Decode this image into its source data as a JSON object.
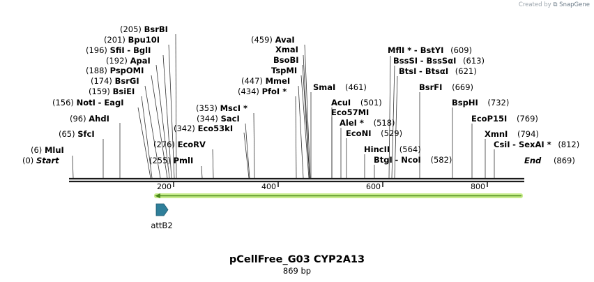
{
  "credit": {
    "prefix": "Created by",
    "brand": "SnapGene"
  },
  "title": "pCellFree_G03 CYP2A13",
  "subtitle": "869 bp",
  "colors": {
    "backbone": "#1a1a1a",
    "feature_arrow": "#4a8a1a",
    "feature_glow": "#c8ec8c",
    "attb2": "#2f7f9a"
  },
  "axis": {
    "ticks": [
      {
        "label": "200"
      },
      {
        "label": "400"
      },
      {
        "label": "600"
      },
      {
        "label": "800"
      }
    ]
  },
  "sites": [
    {
      "pos": "(0)",
      "name": "Start"
    },
    {
      "pos": "(6)",
      "name": "MluI"
    },
    {
      "pos": "(65)",
      "name": "SfcI"
    },
    {
      "pos": "(96)",
      "name": "AhdI"
    },
    {
      "pos": "(156)",
      "name": "NotI",
      "name2": "EagI"
    },
    {
      "pos": "(159)",
      "name": "BsiEI"
    },
    {
      "pos": "(174)",
      "name": "BsrGI"
    },
    {
      "pos": "(188)",
      "name": "PspOMI"
    },
    {
      "pos": "(192)",
      "name": "ApaI"
    },
    {
      "pos": "(196)",
      "name": "SfiI",
      "name2": "BglI"
    },
    {
      "pos": "(201)",
      "name": "Bpu10I"
    },
    {
      "pos": "(205)",
      "name": "BsrBI"
    },
    {
      "pos": "(255)",
      "name": "PmlI"
    },
    {
      "pos": "(276)",
      "name": "EcoRV"
    },
    {
      "pos": "(342)",
      "name": "Eco53kI"
    },
    {
      "pos": "(344)",
      "name": "SacI"
    },
    {
      "pos": "(353)",
      "name": "MscI *"
    },
    {
      "pos": "(434)",
      "name": "PfoI *"
    },
    {
      "pos": "(447)",
      "name": "MmeI"
    },
    {
      "name": "TspMI"
    },
    {
      "name": "BsoBI"
    },
    {
      "name": "XmaI"
    },
    {
      "pos": "(459)",
      "name": "AvaI"
    },
    {
      "pos": "(461)",
      "name": "SmaI"
    },
    {
      "pos": "(501)",
      "name": "AcuI"
    },
    {
      "name": "Eco57MI"
    },
    {
      "pos": "(518)",
      "name": "AleI *"
    },
    {
      "pos": "(529)",
      "name": "EcoNI"
    },
    {
      "pos": "(564)",
      "name": "HincII"
    },
    {
      "pos": "(582)",
      "name": "BtgI",
      "name2": "NcoI"
    },
    {
      "pos": "(621)",
      "name": "BtsI",
      "name2": "BtsαI"
    },
    {
      "pos": "(613)",
      "name": "BssSI",
      "name2": "BssSαI"
    },
    {
      "pos": "(609)",
      "name": "MflI *",
      "name2": "BstYI"
    },
    {
      "pos": "(669)",
      "name": "BsrFI"
    },
    {
      "pos": "(732)",
      "name": "BspHI"
    },
    {
      "pos": "(769)",
      "name": "EcoP15I"
    },
    {
      "pos": "(794)",
      "name": "XmnI"
    },
    {
      "pos": "(812)",
      "name": "CsiI",
      "name2": "SexAI *"
    },
    {
      "pos": "(869)",
      "name": "End"
    }
  ],
  "features": [
    {
      "name": "attB2"
    }
  ]
}
